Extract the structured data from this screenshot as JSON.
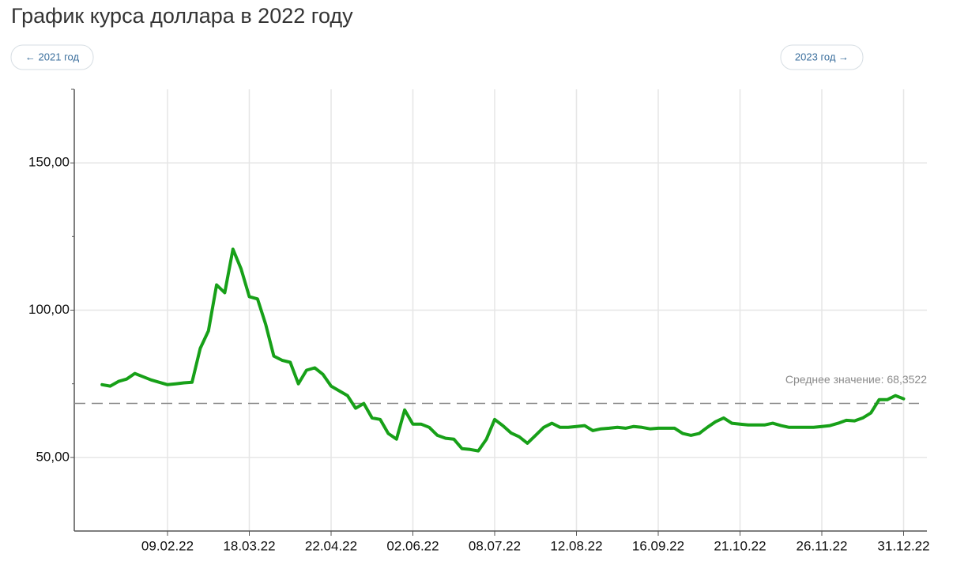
{
  "nav": {
    "prev": "← 2021 год",
    "next": "2023 год →"
  },
  "chart_data": {
    "type": "line",
    "title": "График курса доллара в 2022 году",
    "categories": [
      null,
      null,
      null,
      null,
      null,
      null,
      null,
      null,
      "09.02.22",
      null,
      null,
      null,
      null,
      null,
      null,
      null,
      null,
      null,
      "18.03.22",
      null,
      null,
      null,
      null,
      null,
      null,
      null,
      null,
      null,
      "22.04.22",
      null,
      null,
      null,
      null,
      null,
      null,
      null,
      null,
      null,
      "02.06.22",
      null,
      null,
      null,
      null,
      null,
      null,
      null,
      null,
      null,
      "08.07.22",
      null,
      null,
      null,
      null,
      null,
      null,
      null,
      null,
      null,
      "12.08.22",
      null,
      null,
      null,
      null,
      null,
      null,
      null,
      null,
      null,
      "16.09.22",
      null,
      null,
      null,
      null,
      null,
      null,
      null,
      null,
      null,
      "21.10.22",
      null,
      null,
      null,
      null,
      null,
      null,
      null,
      null,
      null,
      "26.11.22",
      null,
      null,
      null,
      null,
      null,
      null,
      null,
      null,
      null,
      "31.12.22"
    ],
    "values": [
      74.7,
      74.2,
      75.8,
      76.6,
      78.5,
      77.4,
      76.3,
      75.5,
      74.7,
      75.0,
      75.3,
      75.5,
      87.0,
      93.0,
      108.6,
      105.9,
      120.7,
      114.0,
      104.6,
      103.8,
      95.2,
      84.4,
      83.0,
      82.3,
      75.0,
      79.6,
      80.4,
      78.2,
      74.2,
      72.6,
      71.0,
      66.7,
      68.3,
      63.4,
      62.9,
      58.1,
      56.2,
      66.1,
      61.3,
      61.3,
      60.2,
      57.5,
      56.5,
      56.2,
      53.0,
      52.7,
      52.2,
      56.2,
      62.9,
      60.8,
      58.3,
      57.0,
      54.8,
      57.5,
      60.2,
      61.6,
      60.2,
      60.2,
      60.5,
      60.8,
      59.1,
      59.7,
      59.9,
      60.2,
      59.9,
      60.5,
      60.2,
      59.7,
      59.9,
      59.9,
      59.9,
      58.1,
      57.5,
      58.1,
      60.2,
      62.1,
      63.4,
      61.6,
      61.3,
      61.0,
      61.0,
      61.0,
      61.6,
      60.8,
      60.2,
      60.2,
      60.2,
      60.2,
      60.5,
      60.8,
      61.6,
      62.6,
      62.4,
      63.4,
      65.1,
      69.6,
      69.6,
      71.0,
      69.9
    ],
    "color": "#17a018",
    "ylim": [
      25,
      175
    ],
    "yticks": [
      {
        "value": 50,
        "label": "50,00"
      },
      {
        "value": 100,
        "label": "100,00"
      },
      {
        "value": 150,
        "label": "150,00"
      }
    ],
    "yminorticks": [
      75,
      125
    ],
    "mean": {
      "value": 68.3522,
      "label": "Среднее значение: 68,3522"
    },
    "grid": true
  }
}
